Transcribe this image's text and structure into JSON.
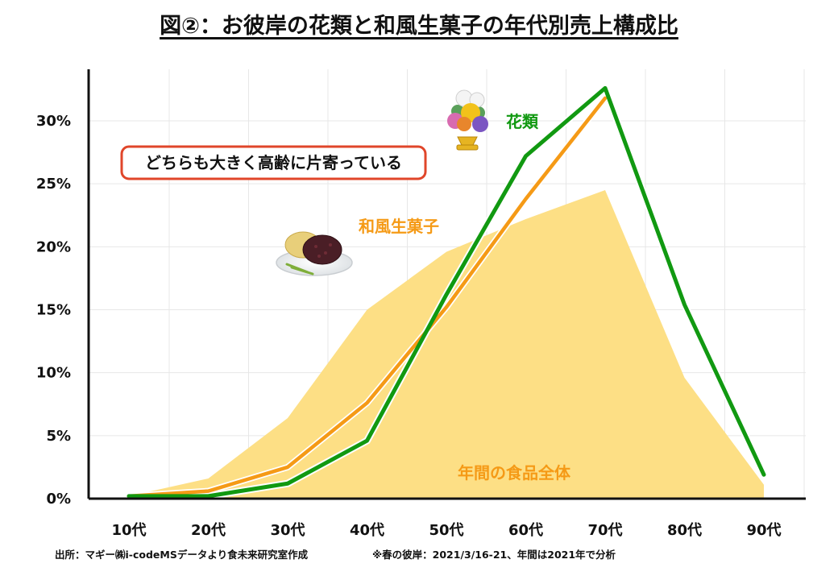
{
  "title": "図②：お彼岸の花類と和風生菓子の年代別売上構成比",
  "annotation": "どちらも大きく高齢に片寄っている",
  "footer": {
    "source": "出所：マギー㈱i-codeMSデータより食未来研究室作成",
    "note": "※春の彼岸：2021/3/16-21、年間は2021年で分析"
  },
  "colors": {
    "flowers": "#119911",
    "wagashi": "#f59a16",
    "total": "#fddf85",
    "callout_border": "#e0462a"
  },
  "icons": {
    "flowers": "chrysanthemum-bouquet-icon",
    "wagashi": "ohagi-plate-icon"
  },
  "chart_data": {
    "type": "line",
    "title": "図②：お彼岸の花類と和風生菓子の年代別売上構成比",
    "categories": [
      "10代",
      "20代",
      "30代",
      "40代",
      "50代",
      "60代",
      "70代",
      "80代",
      "90代"
    ],
    "ylim": [
      0,
      33
    ],
    "yticks": [
      0,
      5,
      10,
      15,
      20,
      25,
      30
    ],
    "ytick_labels": [
      "0%",
      "5%",
      "10%",
      "15%",
      "20%",
      "25%",
      "30%"
    ],
    "grid": true,
    "series": [
      {
        "name": "年間の食品全体",
        "type": "area",
        "values": [
          0.2,
          1.6,
          6.4,
          15.0,
          19.6,
          22.2,
          24.5,
          9.6,
          1.1
        ]
      },
      {
        "name": "和風生菓子",
        "type": "line",
        "values": [
          0.2,
          0.6,
          2.5,
          7.6,
          15.2,
          23.8,
          31.8,
          null,
          null
        ]
      },
      {
        "name": "花類",
        "type": "line",
        "values": [
          0.2,
          0.2,
          1.2,
          4.6,
          16.2,
          27.2,
          32.6,
          15.4,
          1.9
        ]
      }
    ]
  }
}
